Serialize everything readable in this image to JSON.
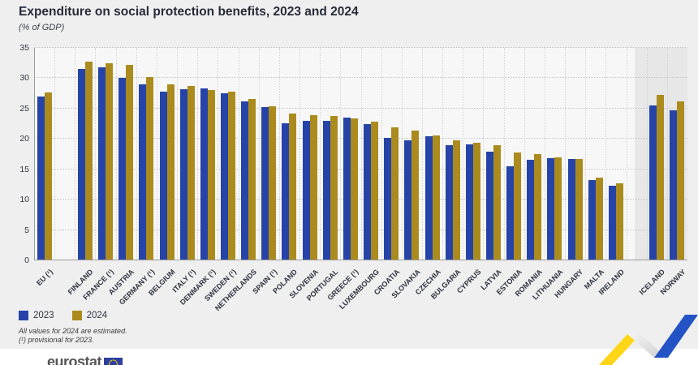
{
  "title": "Expenditure on social protection benefits, 2023 and 2024",
  "subtitle": "(% of GDP)",
  "legend": {
    "items": [
      {
        "label": "2023",
        "color": "#2644a7"
      },
      {
        "label": "2024",
        "color": "#ab8b1e"
      }
    ]
  },
  "footnotes": {
    "line1": "All values for 2024 are estimated.",
    "line2": "(¹) provisional for 2023."
  },
  "logo": {
    "text": "eurostat"
  },
  "chart_data": {
    "type": "bar",
    "title": "Expenditure on social protection benefits, 2023 and 2024",
    "subtitle": "(% of GDP)",
    "xlabel": "",
    "ylabel": "% of GDP",
    "ylim": [
      0,
      35
    ],
    "yticks": [
      0,
      5,
      10,
      15,
      20,
      25,
      30,
      35
    ],
    "grid": true,
    "legend_position": "bottom-left",
    "categories": [
      "EU (¹)",
      "FINLAND",
      "FRANCE (¹)",
      "AUSTRIA",
      "GERMANY (¹)",
      "BELGIUM",
      "ITALY (¹)",
      "DENMARK (¹)",
      "SWEDEN (¹)",
      "NETHERLANDS",
      "SPAIN (¹)",
      "POLAND",
      "SLOVENIA",
      "PORTUGAL",
      "GREECE (¹)",
      "LUXEMBOURG",
      "CROATIA",
      "SLOVAKIA",
      "CZECHIA",
      "BULGARIA",
      "CYPRUS",
      "LATVIA",
      "ESTONIA",
      "ROMANIA",
      "LITHUANIA",
      "HUNGARY",
      "MALTA",
      "IRELAND",
      "ICELAND",
      "NORWAY"
    ],
    "slots": [
      0,
      2,
      3,
      4,
      5,
      6,
      7,
      8,
      9,
      10,
      11,
      12,
      13,
      14,
      15,
      16,
      17,
      18,
      19,
      20,
      21,
      22,
      23,
      24,
      25,
      26,
      27,
      28,
      30,
      31
    ],
    "total_slots": 32,
    "series": [
      {
        "name": "2023",
        "color": "#2644a7",
        "values": [
          26.8,
          31.4,
          31.6,
          29.9,
          28.8,
          27.7,
          28.1,
          28.2,
          27.4,
          26.0,
          25.1,
          22.4,
          22.9,
          22.8,
          23.4,
          22.3,
          20.1,
          19.6,
          20.3,
          18.9,
          19.0,
          17.8,
          15.3,
          16.4,
          16.7,
          16.6,
          13.1,
          12.2,
          25.4,
          24.6
        ]
      },
      {
        "name": "2024",
        "color": "#ab8b1e",
        "values": [
          27.5,
          32.6,
          32.3,
          32.0,
          30.0,
          28.9,
          28.6,
          27.9,
          27.6,
          26.5,
          25.2,
          24.1,
          23.8,
          23.7,
          23.2,
          22.7,
          21.8,
          21.3,
          20.5,
          19.6,
          19.3,
          18.8,
          17.6,
          17.4,
          16.9,
          16.6,
          13.5,
          12.5,
          27.1,
          26.1
        ]
      }
    ],
    "highlight_region": {
      "categories": [
        "ICELAND",
        "NORWAY"
      ],
      "style": "shaded-background",
      "color": "#e7e7e7"
    }
  }
}
